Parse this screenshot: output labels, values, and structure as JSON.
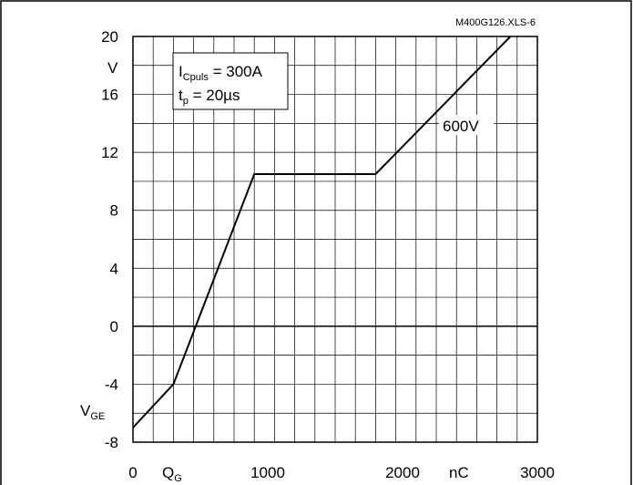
{
  "chart_data": {
    "type": "line",
    "code": "M400G126.XLS-6",
    "y_unit": "V",
    "y_label": {
      "main": "V",
      "sub": "GE"
    },
    "x_label": {
      "main": "Q",
      "sub": "G"
    },
    "x_unit": "nC",
    "xlim": [
      0,
      3000
    ],
    "ylim": [
      -8,
      20
    ],
    "x_ticks": [
      0,
      1000,
      2000,
      3000
    ],
    "y_ticks": [
      20,
      16,
      12,
      8,
      4,
      0,
      -4,
      -8
    ],
    "grid": true,
    "annotation_box": {
      "line1": {
        "main": "I",
        "sub": "Cpuls",
        "rest": " = 300A"
      },
      "line2": {
        "main": "t",
        "sub": "p",
        "rest": " = 20µs"
      }
    },
    "series": [
      {
        "name": "600V",
        "color": "#000000",
        "x": [
          0,
          300,
          900,
          1800,
          2800
        ],
        "y": [
          -7,
          -4,
          10.5,
          10.5,
          20
        ]
      }
    ]
  }
}
